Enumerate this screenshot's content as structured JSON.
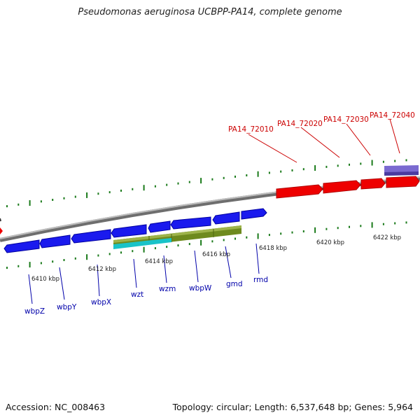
{
  "title": "Pseudomonas aeruginosa UCBPP-PA14, complete genome",
  "footer": {
    "accession": "Accession: NC_008463",
    "stats": "Topology: circular; Length: 6,537,648 bp; Genes: 5,964"
  },
  "colors": {
    "forward_gene": "#ee0000",
    "reverse_gene": "#1a1aee",
    "forward_label": "#cc0000",
    "reverse_label": "#0000aa",
    "backbone": "#888888",
    "ticks": "#1a7a1a",
    "feature_olive": "#6e8a1e",
    "feature_cyan": "#19c3c8",
    "feature_lavender": "#7a6ad0"
  },
  "scale": {
    "unit": "kbp",
    "labels": [
      {
        "kbp": 6410,
        "text": "6410 kbp"
      },
      {
        "kbp": 6412,
        "text": "6412 kbp"
      },
      {
        "kbp": 6414,
        "text": "6414 kbp"
      },
      {
        "kbp": 6416,
        "text": "6416 kbp"
      },
      {
        "kbp": 6418,
        "text": "6418 kbp"
      },
      {
        "kbp": 6420,
        "text": "6420 kbp"
      },
      {
        "kbp": 6422,
        "text": "6422 kbp"
      }
    ]
  },
  "forward_genes": [
    {
      "name": "PA14_72010"
    },
    {
      "name": "PA14_72020"
    },
    {
      "name": "PA14_72030"
    },
    {
      "name": "PA14_72040"
    }
  ],
  "reverse_genes": [
    {
      "name": "wbpZ"
    },
    {
      "name": "wbpY"
    },
    {
      "name": "wbpX"
    },
    {
      "name": "wzt"
    },
    {
      "name": "wzm"
    },
    {
      "name": "wbpW"
    },
    {
      "name": "gmd"
    },
    {
      "name": "rmd"
    }
  ]
}
